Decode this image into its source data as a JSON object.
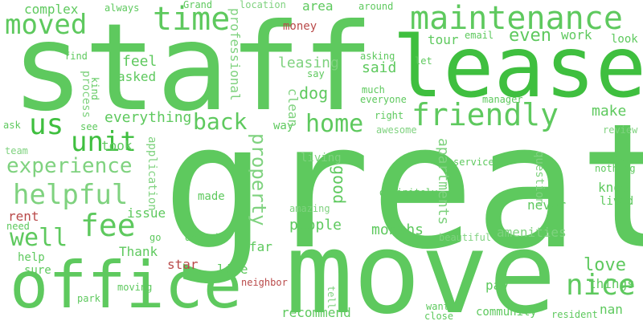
{
  "colors": {
    "background": "#ffffff",
    "green_light": "#7fd27f",
    "green_mid": "#5ec95e",
    "green_dark": "#3fbf3f",
    "red": "#b94a4a"
  },
  "words": [
    {
      "text": "great",
      "color": "#5ec95e"
    },
    {
      "text": "staff",
      "color": "#5ec95e"
    },
    {
      "text": "move",
      "color": "#5ec95e"
    },
    {
      "text": "lease",
      "color": "#3fbf3f"
    },
    {
      "text": "office",
      "color": "#5ec95e"
    },
    {
      "text": "maintenance",
      "color": "#5ec95e"
    },
    {
      "text": "time",
      "color": "#5ec95e"
    },
    {
      "text": "moved",
      "color": "#5ec95e"
    },
    {
      "text": "friendly",
      "color": "#5ec95e"
    },
    {
      "text": "home",
      "color": "#5ec95e"
    },
    {
      "text": "unit",
      "color": "#3fbf3f"
    },
    {
      "text": "us",
      "color": "#3fbf3f"
    },
    {
      "text": "helpful",
      "color": "#7fd27f"
    },
    {
      "text": "experience",
      "color": "#7fd27f"
    },
    {
      "text": "fee",
      "color": "#5ec95e"
    },
    {
      "text": "well",
      "color": "#5ec95e"
    },
    {
      "text": "nice",
      "color": "#5ec95e"
    },
    {
      "text": "back",
      "color": "#5ec95e"
    },
    {
      "text": "everything",
      "color": "#5ec95e"
    },
    {
      "text": "property",
      "color": "#7fd27f"
    },
    {
      "text": "love",
      "color": "#5ec95e"
    },
    {
      "text": "apartments",
      "color": "#7fd27f"
    },
    {
      "text": "even",
      "color": "#5ec95e"
    },
    {
      "text": "complex",
      "color": "#5ec95e"
    },
    {
      "text": "feel",
      "color": "#5ec95e"
    },
    {
      "text": "asked",
      "color": "#5ec95e"
    },
    {
      "text": "leasing",
      "color": "#7fd27f"
    },
    {
      "text": "said",
      "color": "#5ec95e"
    },
    {
      "text": "dog",
      "color": "#5ec95e"
    },
    {
      "text": "tour",
      "color": "#5ec95e"
    },
    {
      "text": "work",
      "color": "#5ec95e"
    },
    {
      "text": "area",
      "color": "#5ec95e"
    },
    {
      "text": "make",
      "color": "#5ec95e"
    },
    {
      "text": "money",
      "color": "#b94a4a"
    },
    {
      "text": "took",
      "color": "#5ec95e"
    },
    {
      "text": "good",
      "color": "#5ec95e"
    },
    {
      "text": "people",
      "color": "#5ec95e"
    },
    {
      "text": "months",
      "color": "#5ec95e"
    },
    {
      "text": "never",
      "color": "#5ec95e"
    },
    {
      "text": "amenities",
      "color": "#7fd27f"
    },
    {
      "text": "things",
      "color": "#5ec95e"
    },
    {
      "text": "issue",
      "color": "#5ec95e"
    },
    {
      "text": "rent",
      "color": "#b94a4a"
    },
    {
      "text": "made",
      "color": "#5ec95e"
    },
    {
      "text": "far",
      "color": "#5ec95e"
    },
    {
      "text": "live",
      "color": "#5ec95e"
    },
    {
      "text": "Thank",
      "color": "#5ec95e"
    },
    {
      "text": "star",
      "color": "#b94a4a"
    },
    {
      "text": "recommend",
      "color": "#5ec95e"
    },
    {
      "text": "pay",
      "color": "#5ec95e"
    },
    {
      "text": "know",
      "color": "#5ec95e"
    },
    {
      "text": "lived",
      "color": "#5ec95e"
    },
    {
      "text": "living",
      "color": "#7fd27f"
    },
    {
      "text": "way",
      "color": "#5ec95e"
    },
    {
      "text": "clean",
      "color": "#7fd27f"
    },
    {
      "text": "professional",
      "color": "#7fd27f"
    },
    {
      "text": "process",
      "color": "#7fd27f"
    },
    {
      "text": "application",
      "color": "#7fd27f"
    },
    {
      "text": "question",
      "color": "#7fd27f"
    },
    {
      "text": "first",
      "color": "#5ec95e"
    },
    {
      "text": "nothing",
      "color": "#5ec95e"
    },
    {
      "text": "review",
      "color": "#7fd27f"
    },
    {
      "text": "help",
      "color": "#5ec95e"
    },
    {
      "text": "sure",
      "color": "#5ec95e"
    },
    {
      "text": "need",
      "color": "#5ec95e"
    },
    {
      "text": "deposit",
      "color": "#5ec95e"
    },
    {
      "text": "beautiful",
      "color": "#7fd27f"
    },
    {
      "text": "community",
      "color": "#5ec95e"
    },
    {
      "text": "resident",
      "color": "#5ec95e"
    },
    {
      "text": "nan",
      "color": "#5ec95e"
    },
    {
      "text": "want",
      "color": "#5ec95e"
    },
    {
      "text": "close",
      "color": "#5ec95e"
    },
    {
      "text": "park",
      "color": "#5ec95e"
    },
    {
      "text": "neighbor",
      "color": "#b94a4a"
    },
    {
      "text": "tell",
      "color": "#7fd27f"
    },
    {
      "text": "definitely",
      "color": "#5ec95e"
    },
    {
      "text": "amazing",
      "color": "#7fd27f"
    },
    {
      "text": "service",
      "color": "#5ec95e"
    },
    {
      "text": "always",
      "color": "#5ec95e"
    },
    {
      "text": "Grand",
      "color": "#5ec95e"
    },
    {
      "text": "location",
      "color": "#7fd27f"
    },
    {
      "text": "around",
      "color": "#5ec95e"
    },
    {
      "text": "find",
      "color": "#5ec95e"
    },
    {
      "text": "kind",
      "color": "#5ec95e"
    },
    {
      "text": "ask",
      "color": "#5ec95e"
    },
    {
      "text": "see",
      "color": "#5ec95e"
    },
    {
      "text": "team",
      "color": "#7fd27f"
    },
    {
      "text": "moving",
      "color": "#5ec95e"
    },
    {
      "text": "go",
      "color": "#5ec95e"
    },
    {
      "text": "email",
      "color": "#5ec95e"
    },
    {
      "text": "look",
      "color": "#5ec95e"
    },
    {
      "text": "asking",
      "color": "#5ec95e"
    },
    {
      "text": "let",
      "color": "#5ec95e"
    },
    {
      "text": "say",
      "color": "#5ec95e"
    },
    {
      "text": "much",
      "color": "#5ec95e"
    },
    {
      "text": "everyone",
      "color": "#5ec95e"
    },
    {
      "text": "manager",
      "color": "#5ec95e"
    },
    {
      "text": "right",
      "color": "#5ec95e"
    },
    {
      "text": "awesome",
      "color": "#7fd27f"
    }
  ]
}
